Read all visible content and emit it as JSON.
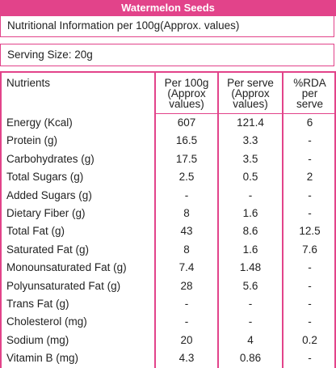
{
  "header": {
    "title": "Watermelon Seeds"
  },
  "info": "Nutritional Information per 100g(Approx. values)",
  "serving": "Serving Size:  20g",
  "table": {
    "columns": [
      [
        "Nutrients"
      ],
      [
        "Per 100g",
        "(Approx",
        "values)"
      ],
      [
        "Per serve",
        "(Approx",
        "values)"
      ],
      [
        "%RDA",
        "per",
        "serve"
      ]
    ],
    "rows": [
      [
        "Energy (Kcal)",
        "607",
        "121.4",
        "6"
      ],
      [
        "Protein (g)",
        "16.5",
        "3.3",
        "-"
      ],
      [
        "Carbohydrates (g)",
        "17.5",
        "3.5",
        "-"
      ],
      [
        "Total Sugars (g)",
        "2.5",
        "0.5",
        "2"
      ],
      [
        "Added Sugars (g)",
        "-",
        "-",
        "-"
      ],
      [
        "Dietary Fiber (g)",
        "8",
        "1.6",
        "-"
      ],
      [
        "Total Fat (g)",
        "43",
        "8.6",
        "12.5"
      ],
      [
        "Saturated Fat (g)",
        "8",
        "1.6",
        "7.6"
      ],
      [
        "Monounsaturated Fat (g)",
        "7.4",
        "1.48",
        "-"
      ],
      [
        "Polyunsaturated Fat (g)",
        "28",
        "5.6",
        "-"
      ],
      [
        "Trans Fat (g)",
        "-",
        "-",
        "-"
      ],
      [
        "Cholesterol (mg)",
        "-",
        "-",
        "-"
      ],
      [
        "Sodium (mg)",
        "20",
        "4",
        "0.2"
      ],
      [
        "Vitamin B (mg)",
        "4.3",
        "0.86",
        "-"
      ]
    ]
  }
}
